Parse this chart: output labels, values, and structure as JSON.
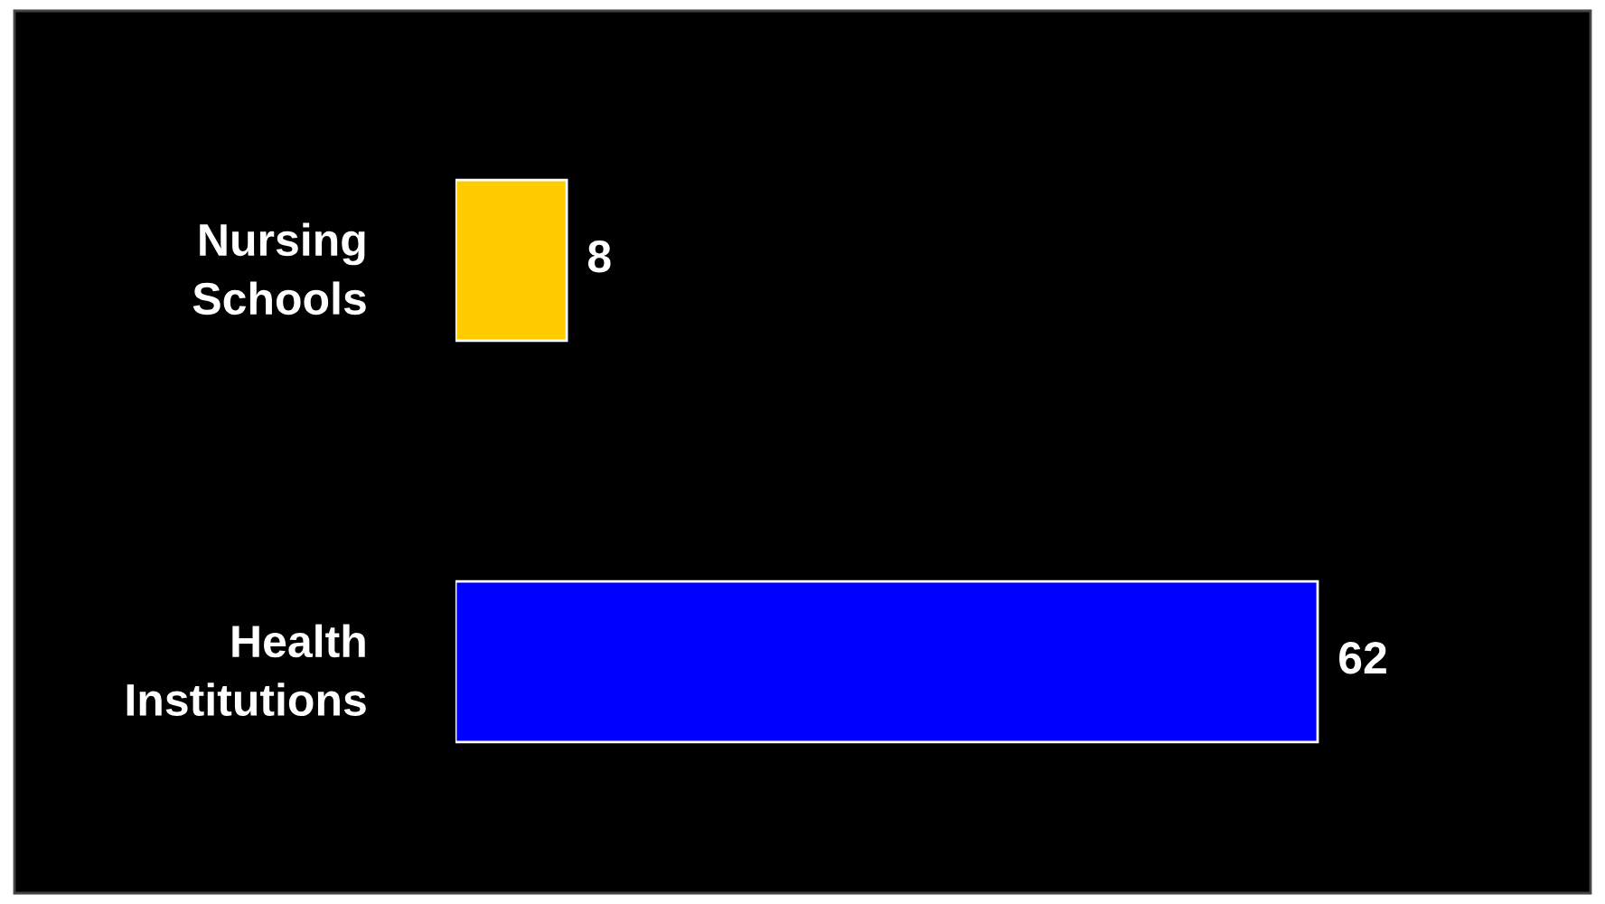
{
  "chart_data": {
    "type": "bar",
    "orientation": "horizontal",
    "categories": [
      "Nursing Schools",
      "Health Institutions"
    ],
    "colors": [
      "#ffcc00",
      "#0000ff"
    ],
    "values": [
      8,
      62
    ],
    "data_labels": true,
    "grid": false,
    "legend": false
  }
}
